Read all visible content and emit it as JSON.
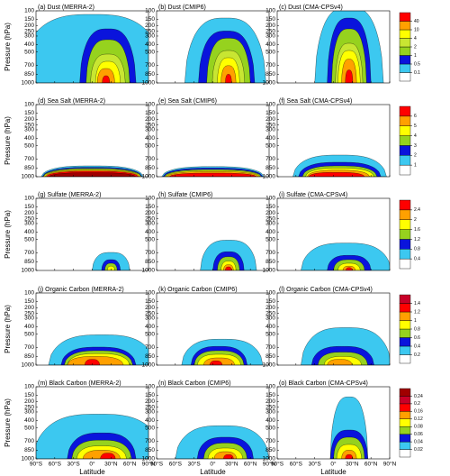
{
  "chart_data": {
    "type": "contour",
    "ylabel": "Pressure (hPa)",
    "xlabel": "Latitude",
    "ylim": [
      100,
      1000
    ],
    "yticks": [
      100,
      150,
      200,
      250,
      300,
      400,
      500,
      700,
      850,
      1000
    ],
    "xlim": [
      -90,
      90
    ],
    "xticks": [
      {
        "value": -90,
        "label": "90°S"
      },
      {
        "value": -60,
        "label": "60°S"
      },
      {
        "value": -30,
        "label": "30°S"
      },
      {
        "value": 0,
        "label": "0°"
      },
      {
        "value": 30,
        "label": "30°N"
      },
      {
        "value": 60,
        "label": "60°N"
      },
      {
        "value": 90,
        "label": "90°N"
      }
    ],
    "rows": [
      {
        "titles": [
          "(a) Dust (MERRA-2)",
          "(b) Dust (CMIP6)",
          "(c) Dust (CMA-CPSv4)"
        ],
        "levels": [
          0.1,
          0.5,
          1,
          2,
          4,
          10,
          40
        ],
        "colors": [
          "#ffffff",
          "#3cc8f0",
          "#0a14dc",
          "#96d21e",
          "#c8e632",
          "#ffff00",
          "#ffa000",
          "#ff0000"
        ]
      },
      {
        "titles": [
          "(d) Sea Salt (MERRA-2)",
          "(e) Sea Salt (CMIP6)",
          "(f) Sea Salt (CMA-CPSv4)"
        ],
        "levels": [
          1,
          2,
          3,
          4,
          5,
          6
        ],
        "colors": [
          "#ffffff",
          "#3cc8f0",
          "#0a14dc",
          "#96d21e",
          "#ffff00",
          "#ffa000",
          "#ff0000",
          "#a00000"
        ]
      },
      {
        "titles": [
          "(g) Sulfate (MERRA-2)",
          "(h) Sulfate (CMIP6)",
          "(i) Sulfate (CMA-CPSv4)"
        ],
        "levels": [
          0.4,
          0.8,
          1.2,
          1.6,
          2,
          2.4
        ],
        "colors": [
          "#ffffff",
          "#3cc8f0",
          "#0a14dc",
          "#96d21e",
          "#ffff00",
          "#ffa000",
          "#ff0000",
          "#a00000"
        ]
      },
      {
        "titles": [
          "(j) Organic Carbon (MERRA-2)",
          "(k) Organic Carbon (CMIP6)",
          "(l) Organic Carbon (CMA-CPSv4)"
        ],
        "levels": [
          0.2,
          0.4,
          0.6,
          0.8,
          1,
          1.2,
          1.4
        ],
        "colors": [
          "#ffffff",
          "#3cc8f0",
          "#0a14dc",
          "#96d21e",
          "#ffff00",
          "#ffa000",
          "#ff0000",
          "#c80028",
          "#a00000"
        ]
      },
      {
        "titles": [
          "(m) Black Carbon (MERRA-2)",
          "(n) Black Carbon (CMIP6)",
          "(o) Black Carbon (CMA-CPSv4)"
        ],
        "levels": [
          0.02,
          0.04,
          0.06,
          0.08,
          0.12,
          0.16,
          0.2,
          0.24
        ],
        "colors": [
          "#ffffff",
          "#3cc8f0",
          "#0a14dc",
          "#96d21e",
          "#ffff00",
          "#ffa000",
          "#ff0000",
          "#c80028",
          "#a00000"
        ]
      }
    ]
  }
}
